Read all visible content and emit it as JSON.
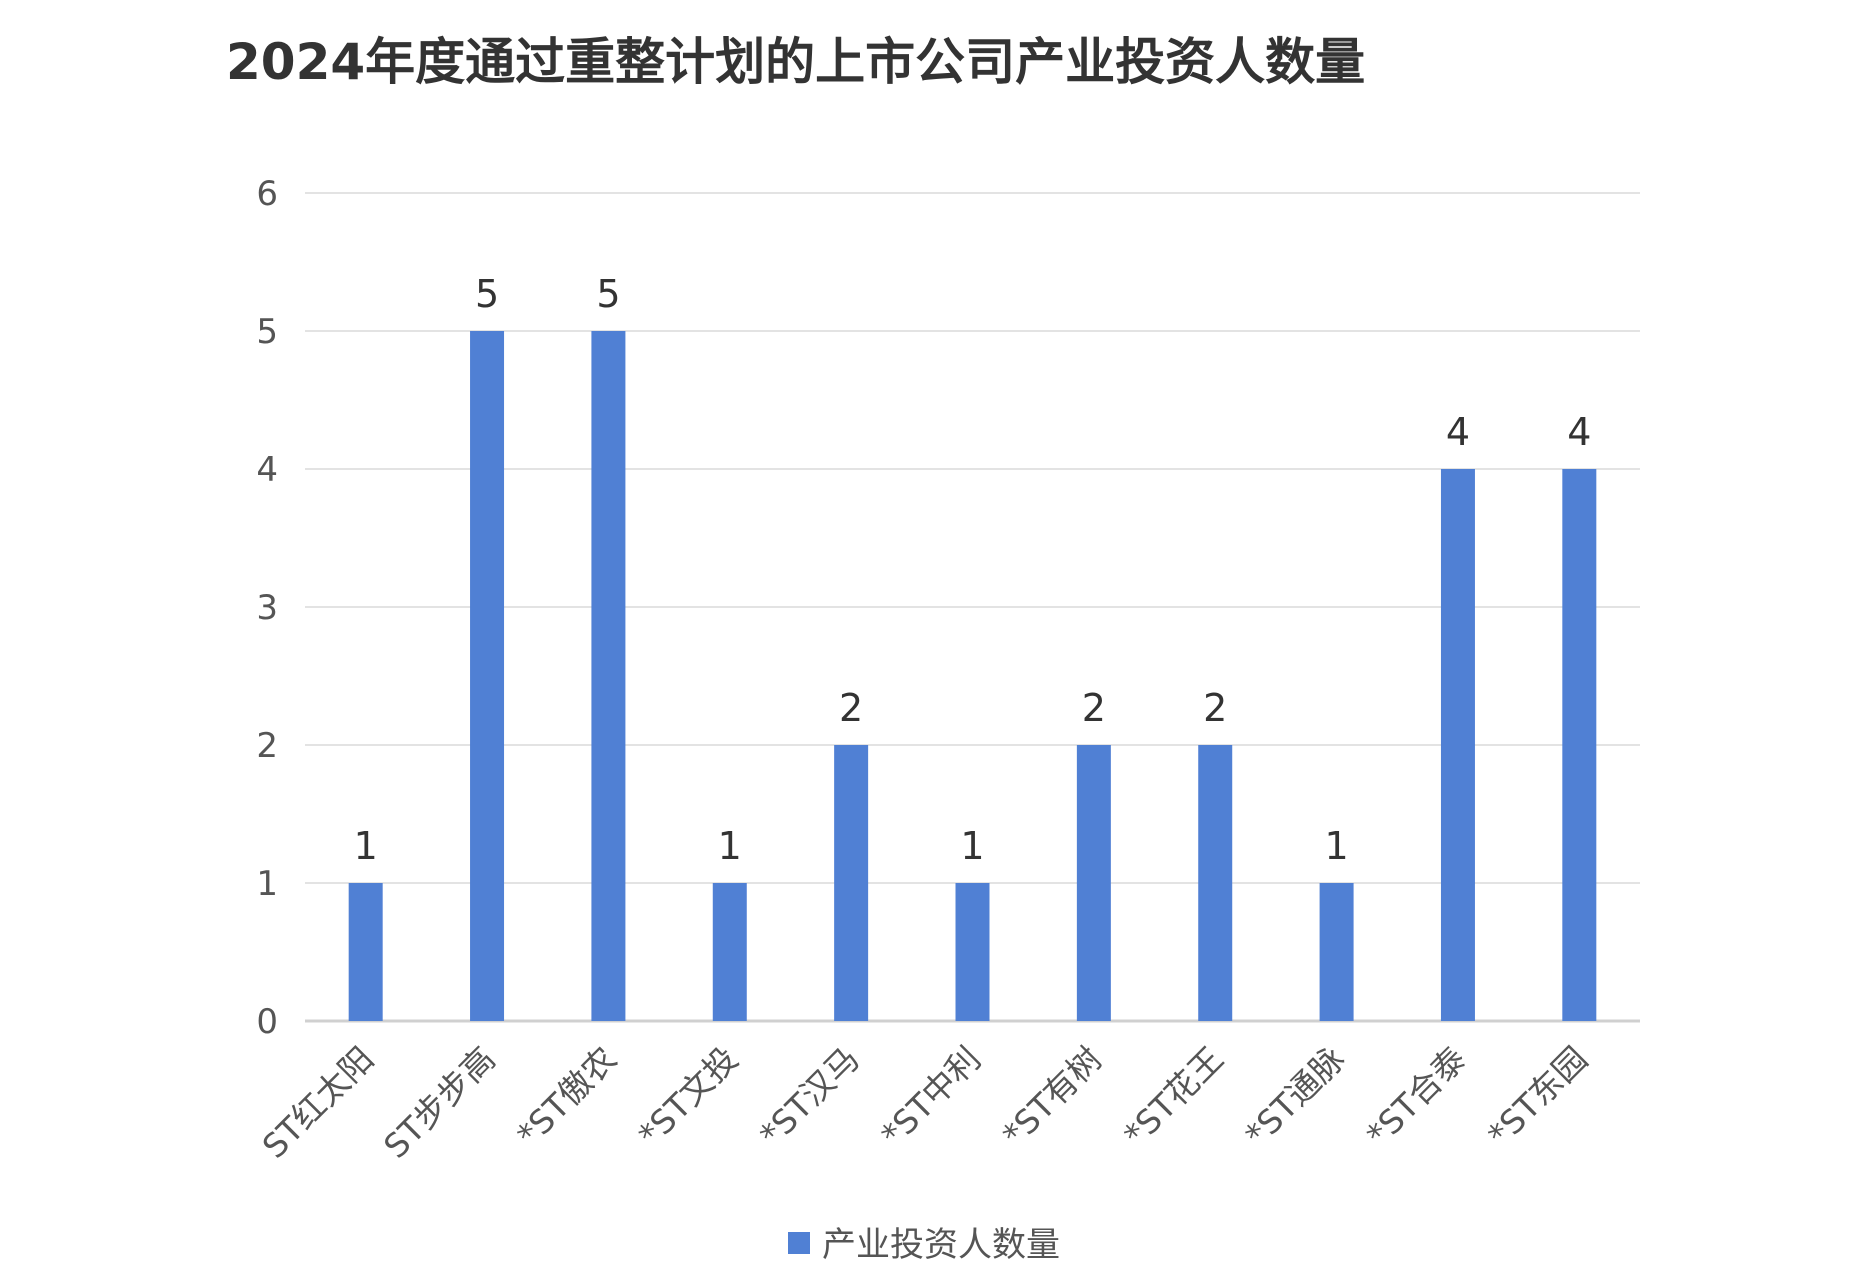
{
  "chart_data": {
    "type": "bar",
    "title": "2024年度通过重整计划的上市公司产业投资人数量",
    "xlabel": "",
    "ylabel": "",
    "categories": [
      "ST红太阳",
      "ST步步高",
      "*ST傲农",
      "*ST文投",
      "*ST汉马",
      "*ST中利",
      "*ST有树",
      "*ST花王",
      "*ST通脉",
      "*ST合泰",
      "*ST东园"
    ],
    "series": [
      {
        "name": "产业投资人数量",
        "values": [
          1,
          5,
          5,
          1,
          2,
          1,
          2,
          2,
          1,
          4,
          4
        ],
        "color": "#5080D4"
      }
    ],
    "ylim": [
      0,
      6
    ],
    "yticks": [
      "0",
      "1",
      "2",
      "3",
      "4",
      "5",
      "6"
    ],
    "grid": true,
    "data_labels": true,
    "legend_position": "bottom"
  }
}
